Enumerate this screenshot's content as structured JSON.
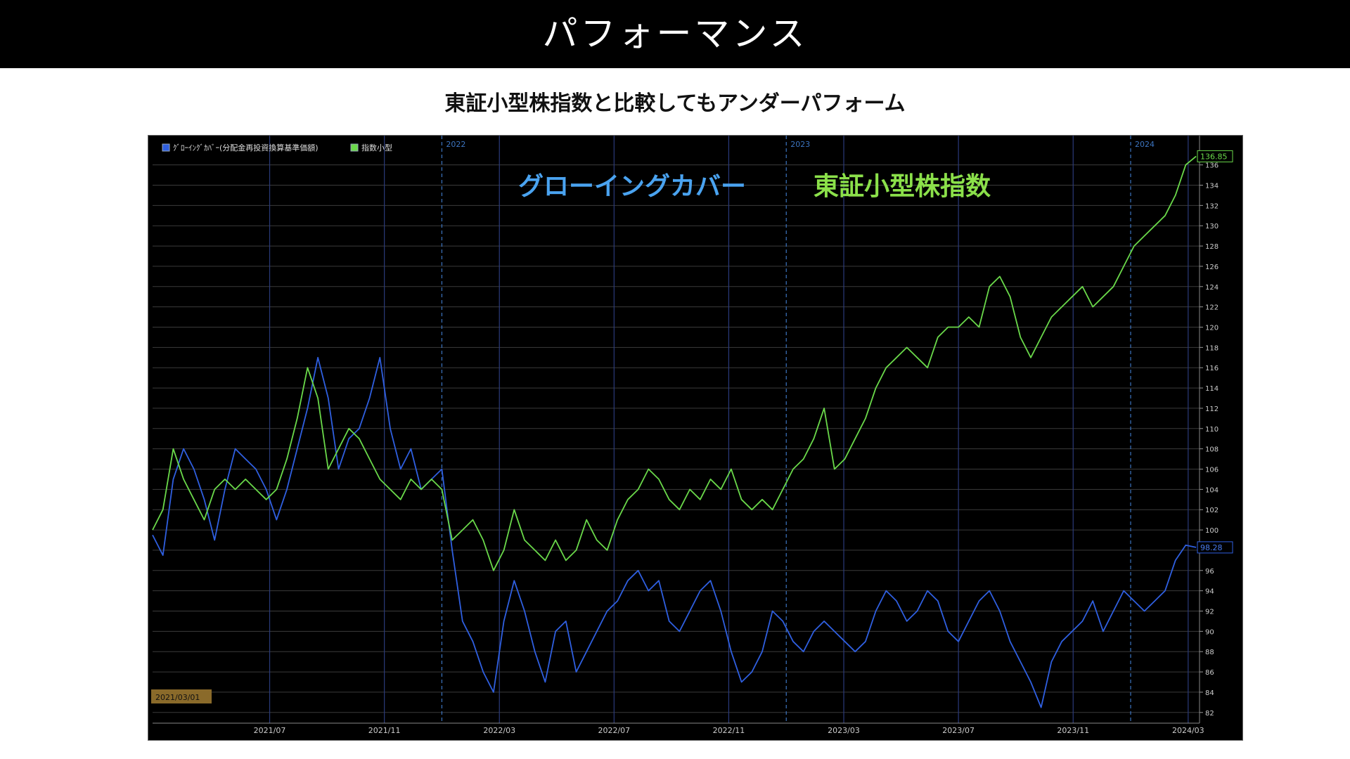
{
  "slide": {
    "title": "パフォーマンス",
    "subtitle": "東証小型株指数と比較してもアンダーパフォーム"
  },
  "annotations": {
    "fund_label": "グローイングカバー",
    "index_label": "東証小型株指数",
    "start_date": "2021/03/01"
  },
  "chart_data": {
    "type": "line",
    "title": "",
    "xlabel": "",
    "ylabel": "",
    "ylim": [
      81.5,
      137.5
    ],
    "grid": true,
    "legend_position": "top-left",
    "x_ticks": [
      "2021/07",
      "2021/11",
      "2022/03",
      "2022/07",
      "2022/11",
      "2023/03",
      "2023/07",
      "2023/11",
      "2024/03"
    ],
    "x_tick_pos": [
      2021.5,
      2021.833,
      2022.167,
      2022.5,
      2022.833,
      2023.167,
      2023.5,
      2023.833,
      2024.167
    ],
    "year_markers": [
      "2022",
      "2023",
      "2024"
    ],
    "year_marker_pos": [
      2022.0,
      2023.0,
      2024.0
    ],
    "x_range": [
      2021.16,
      2024.2
    ],
    "y_ticks": [
      82,
      84,
      86,
      88,
      90,
      92,
      94,
      96,
      98,
      100,
      102,
      104,
      106,
      108,
      110,
      112,
      114,
      116,
      118,
      120,
      122,
      124,
      126,
      128,
      130,
      132,
      134,
      136
    ],
    "series": [
      {
        "name": "ｸﾞﾛｰｲﾝｸﾞｶﾊﾞｰ(分配金再投資換算基準価額)",
        "color": "#2f5fe0",
        "last_value_label": "98.28",
        "x": [
          2021.16,
          2021.19,
          2021.22,
          2021.25,
          2021.28,
          2021.31,
          2021.34,
          2021.37,
          2021.4,
          2021.43,
          2021.46,
          2021.49,
          2021.52,
          2021.55,
          2021.58,
          2021.61,
          2021.64,
          2021.67,
          2021.7,
          2021.73,
          2021.76,
          2021.79,
          2021.82,
          2021.85,
          2021.88,
          2021.91,
          2021.94,
          2021.97,
          2022.0,
          2022.03,
          2022.06,
          2022.09,
          2022.12,
          2022.15,
          2022.18,
          2022.21,
          2022.24,
          2022.27,
          2022.3,
          2022.33,
          2022.36,
          2022.39,
          2022.42,
          2022.45,
          2022.48,
          2022.51,
          2022.54,
          2022.57,
          2022.6,
          2022.63,
          2022.66,
          2022.69,
          2022.72,
          2022.75,
          2022.78,
          2022.81,
          2022.84,
          2022.87,
          2022.9,
          2022.93,
          2022.96,
          2022.99,
          2023.02,
          2023.05,
          2023.08,
          2023.11,
          2023.14,
          2023.17,
          2023.2,
          2023.23,
          2023.26,
          2023.29,
          2023.32,
          2023.35,
          2023.38,
          2023.41,
          2023.44,
          2023.47,
          2023.5,
          2023.53,
          2023.56,
          2023.59,
          2023.62,
          2023.65,
          2023.68,
          2023.71,
          2023.74,
          2023.77,
          2023.8,
          2023.83,
          2023.86,
          2023.89,
          2023.92,
          2023.95,
          2023.98,
          2024.01,
          2024.04,
          2024.07,
          2024.1,
          2024.13,
          2024.16,
          2024.19
        ],
        "values": [
          99.5,
          97.5,
          105,
          108,
          106,
          103,
          99,
          104,
          108,
          107,
          106,
          104,
          101,
          104,
          108,
          112,
          117,
          113,
          106,
          109,
          110,
          113,
          117,
          110,
          106,
          108,
          104,
          105,
          106,
          98,
          91,
          89,
          86,
          84,
          91,
          95,
          92,
          88,
          85,
          90,
          91,
          86,
          88,
          90,
          92,
          93,
          95,
          96,
          94,
          95,
          91,
          90,
          92,
          94,
          95,
          92,
          88,
          85,
          86,
          88,
          92,
          91,
          89,
          88,
          90,
          91,
          90,
          89,
          88,
          89,
          92,
          94,
          93,
          91,
          92,
          94,
          93,
          90,
          89,
          91,
          93,
          94,
          92,
          89,
          87,
          85,
          82.5,
          87,
          89,
          90,
          91,
          93,
          90,
          92,
          94,
          93,
          92,
          93,
          94,
          97,
          98.5,
          98.28
        ]
      },
      {
        "name": "指数小型",
        "color": "#6ad94a",
        "last_value_label": "136.85",
        "x": [
          2021.16,
          2021.19,
          2021.22,
          2021.25,
          2021.28,
          2021.31,
          2021.34,
          2021.37,
          2021.4,
          2021.43,
          2021.46,
          2021.49,
          2021.52,
          2021.55,
          2021.58,
          2021.61,
          2021.64,
          2021.67,
          2021.7,
          2021.73,
          2021.76,
          2021.79,
          2021.82,
          2021.85,
          2021.88,
          2021.91,
          2021.94,
          2021.97,
          2022.0,
          2022.03,
          2022.06,
          2022.09,
          2022.12,
          2022.15,
          2022.18,
          2022.21,
          2022.24,
          2022.27,
          2022.3,
          2022.33,
          2022.36,
          2022.39,
          2022.42,
          2022.45,
          2022.48,
          2022.51,
          2022.54,
          2022.57,
          2022.6,
          2022.63,
          2022.66,
          2022.69,
          2022.72,
          2022.75,
          2022.78,
          2022.81,
          2022.84,
          2022.87,
          2022.9,
          2022.93,
          2022.96,
          2022.99,
          2023.02,
          2023.05,
          2023.08,
          2023.11,
          2023.14,
          2023.17,
          2023.2,
          2023.23,
          2023.26,
          2023.29,
          2023.32,
          2023.35,
          2023.38,
          2023.41,
          2023.44,
          2023.47,
          2023.5,
          2023.53,
          2023.56,
          2023.59,
          2023.62,
          2023.65,
          2023.68,
          2023.71,
          2023.74,
          2023.77,
          2023.8,
          2023.83,
          2023.86,
          2023.89,
          2023.92,
          2023.95,
          2023.98,
          2024.01,
          2024.04,
          2024.07,
          2024.1,
          2024.13,
          2024.16,
          2024.19
        ],
        "values": [
          100,
          102,
          108,
          105,
          103,
          101,
          104,
          105,
          104,
          105,
          104,
          103,
          104,
          107,
          111,
          116,
          113,
          106,
          108,
          110,
          109,
          107,
          105,
          104,
          103,
          105,
          104,
          105,
          104,
          99,
          100,
          101,
          99,
          96,
          98,
          102,
          99,
          98,
          97,
          99,
          97,
          98,
          101,
          99,
          98,
          101,
          103,
          104,
          106,
          105,
          103,
          102,
          104,
          103,
          105,
          104,
          106,
          103,
          102,
          103,
          102,
          104,
          106,
          107,
          109,
          112,
          106,
          107,
          109,
          111,
          114,
          116,
          117,
          118,
          117,
          116,
          119,
          120,
          120,
          121,
          120,
          124,
          125,
          123,
          119,
          117,
          119,
          121,
          122,
          123,
          124,
          122,
          123,
          124,
          126,
          128,
          129,
          130,
          131,
          133,
          136,
          136.85
        ]
      }
    ]
  }
}
